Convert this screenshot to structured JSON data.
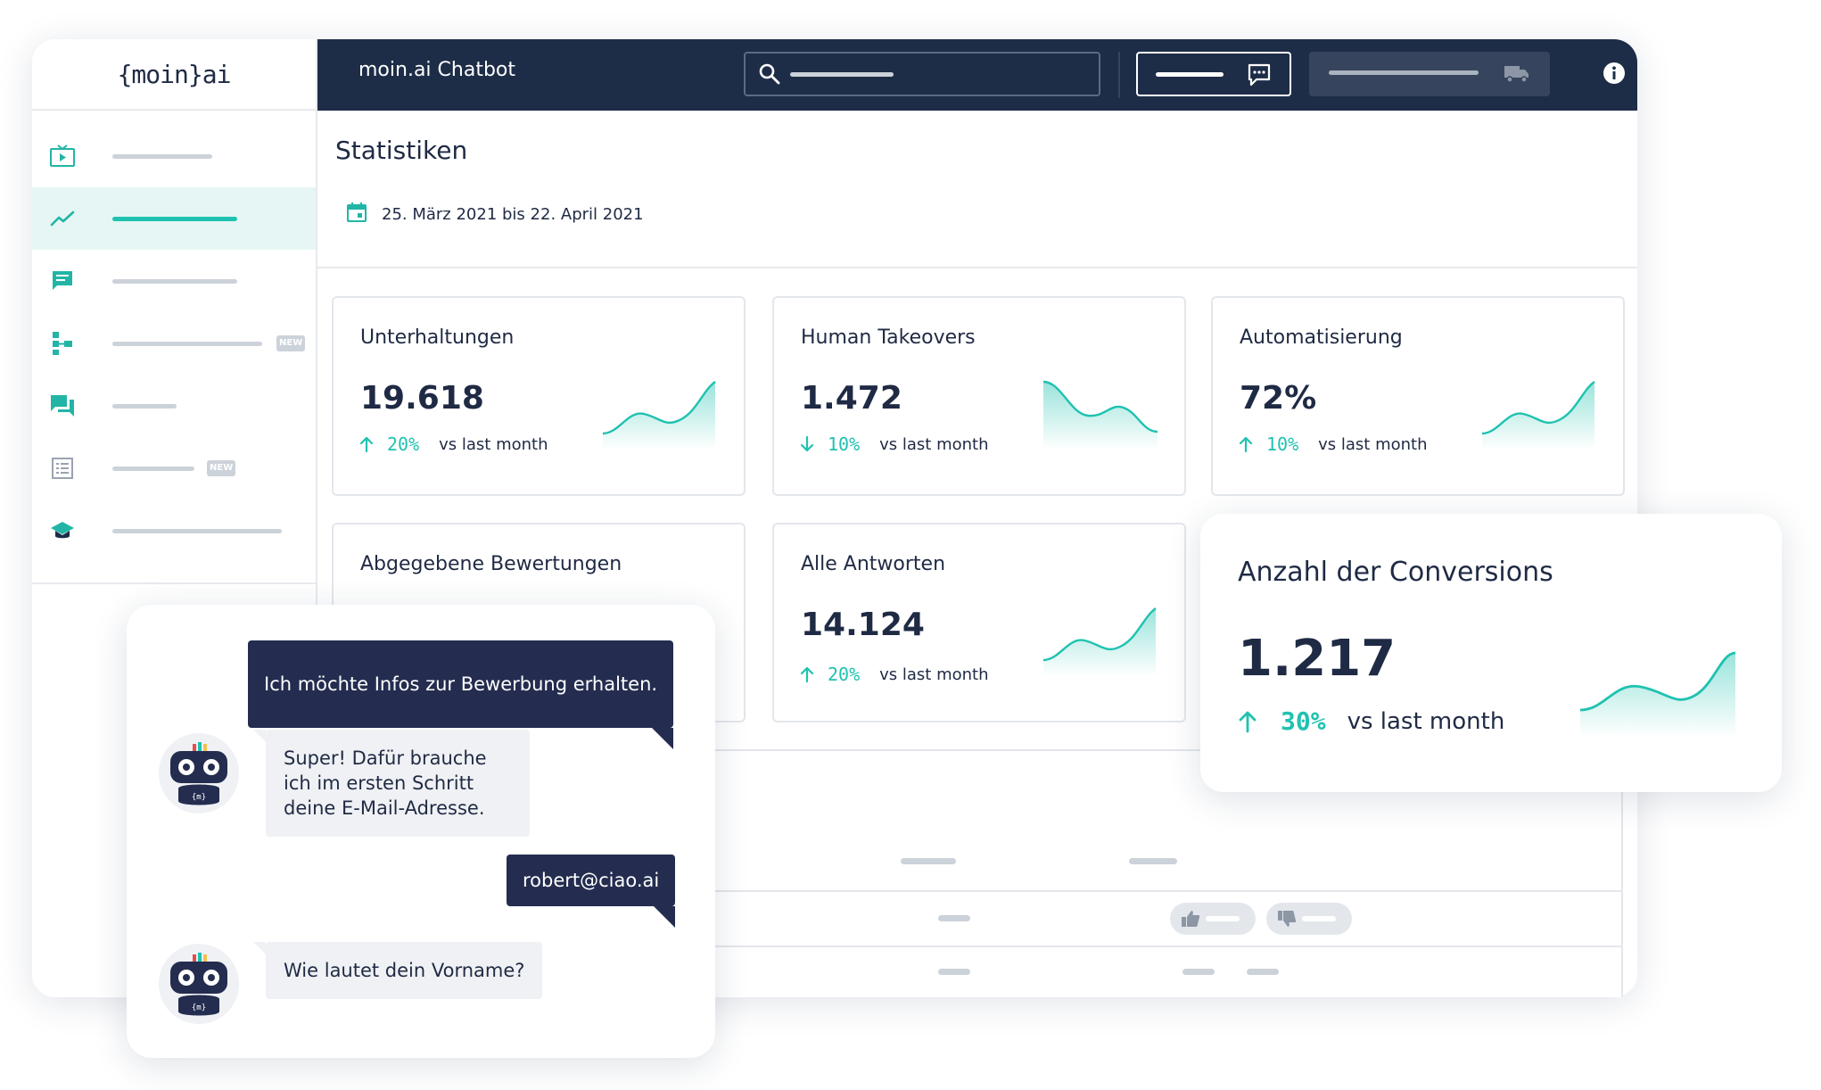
{
  "app": {
    "logo_text": "{moin}ai",
    "title": "moin.ai Chatbot"
  },
  "sidebar": {
    "items": [
      {
        "icon": "tv-play-icon",
        "active": false,
        "new": false
      },
      {
        "icon": "trend-line-icon",
        "active": true,
        "new": false
      },
      {
        "icon": "chat-message-icon",
        "active": false,
        "new": false
      },
      {
        "icon": "flow-tree-icon",
        "active": false,
        "new": true
      },
      {
        "icon": "conversations-icon",
        "active": false,
        "new": false
      },
      {
        "icon": "list-icon",
        "active": false,
        "new": true
      },
      {
        "icon": "graduation-cap-icon",
        "active": false,
        "new": false
      }
    ],
    "new_badge": "NEW"
  },
  "page": {
    "title": "Statistiken",
    "date_range": "25. März 2021 bis 22. April 2021"
  },
  "cards": [
    {
      "title": "Unterhaltungen",
      "value": "19.618",
      "direction": "up",
      "percent": "20%",
      "vs": "vs last month"
    },
    {
      "title": "Human Takeovers",
      "value": "1.472",
      "direction": "down",
      "percent": "10%",
      "vs": "vs last month"
    },
    {
      "title": "Automatisierung",
      "value": "72%",
      "direction": "up",
      "percent": "10%",
      "vs": "vs last month"
    },
    {
      "title": "Abgegebene Bewertungen"
    },
    {
      "title": "Alle Antworten",
      "value": "14.124",
      "direction": "up",
      "percent": "20%",
      "vs": "vs last month"
    }
  ],
  "conversions": {
    "title": "Anzahl der Conversions",
    "value": "1.217",
    "direction": "up",
    "percent": "30%",
    "vs": "vs last month"
  },
  "chat": {
    "messages": [
      {
        "from": "user",
        "text": "Ich möchte Infos zur Bewerbung erhalten."
      },
      {
        "from": "bot",
        "text": "Super! Dafür brauche ich im ersten Schritt deine E-Mail-Adresse."
      },
      {
        "from": "user",
        "text": "robert@ciao.ai"
      },
      {
        "from": "bot",
        "text": "Wie lautet dein Vorname?"
      }
    ]
  },
  "colors": {
    "navy": "#1e2d47",
    "accent": "#1fc2b0",
    "bubble_user": "#242d4f",
    "bubble_bot": "#f0f1f4",
    "placeholder": "#ccd2d9"
  }
}
